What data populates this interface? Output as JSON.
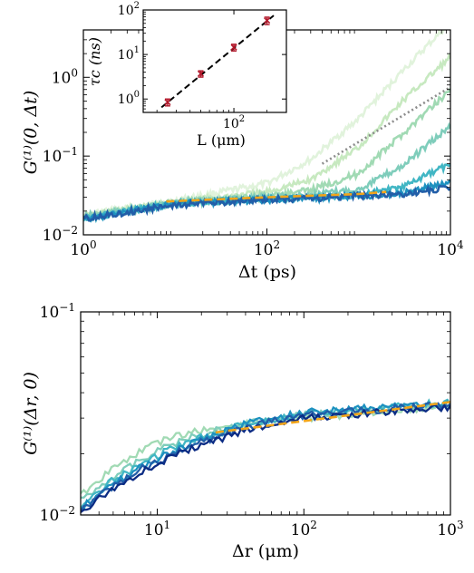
{
  "chart_data": [
    {
      "type": "line",
      "ylabel": "G⁽¹⁾(0, Δt)",
      "xlabel": "Δt (ps)",
      "xscale": "log",
      "yscale": "log",
      "xlim": [
        1,
        10000
      ],
      "ylim": [
        0.01,
        4
      ],
      "xticks": [
        {
          "v": 1,
          "b": "10",
          "e": "0"
        },
        {
          "v": 100,
          "b": "10",
          "e": "2"
        },
        {
          "v": 10000,
          "b": "10",
          "e": "4"
        }
      ],
      "yticks": [
        {
          "v": 0.01,
          "b": "10",
          "e": "−2"
        },
        {
          "v": 0.1,
          "b": "10",
          "e": "−1"
        },
        {
          "v": 1,
          "b": "10",
          "e": "0"
        }
      ],
      "colors": [
        "#e1f3dc",
        "#c7e9c0",
        "#a1dab4",
        "#7fcdbb",
        "#41b6c4",
        "#1d91c0",
        "#225ea8"
      ],
      "series": [
        {
          "color": "#e1f3dc",
          "x": [
            1,
            10,
            100,
            300,
            1000,
            3000,
            10000
          ],
          "y": [
            0.018,
            0.027,
            0.045,
            0.09,
            0.3,
            1.2,
            5.0
          ]
        },
        {
          "color": "#c7e9c0",
          "x": [
            1,
            10,
            100,
            300,
            1000,
            3000,
            10000
          ],
          "y": [
            0.017,
            0.026,
            0.035,
            0.05,
            0.13,
            0.5,
            1.8
          ]
        },
        {
          "color": "#a1dab4",
          "x": [
            1,
            10,
            100,
            300,
            1000,
            3000,
            10000
          ],
          "y": [
            0.017,
            0.026,
            0.031,
            0.037,
            0.06,
            0.19,
            0.7
          ]
        },
        {
          "color": "#7fcdbb",
          "x": [
            1,
            10,
            100,
            300,
            1000,
            3000,
            10000
          ],
          "y": [
            0.017,
            0.025,
            0.03,
            0.032,
            0.038,
            0.075,
            0.24
          ]
        },
        {
          "color": "#41b6c4",
          "x": [
            1,
            10,
            100,
            300,
            1000,
            3000,
            10000
          ],
          "y": [
            0.016,
            0.025,
            0.029,
            0.03,
            0.032,
            0.04,
            0.08
          ]
        },
        {
          "color": "#1d91c0",
          "x": [
            1,
            10,
            100,
            300,
            1000,
            3000,
            10000
          ],
          "y": [
            0.016,
            0.025,
            0.028,
            0.029,
            0.031,
            0.034,
            0.046
          ]
        },
        {
          "color": "#225ea8",
          "x": [
            1,
            10,
            100,
            300,
            1000,
            3000,
            10000
          ],
          "y": [
            0.016,
            0.024,
            0.028,
            0.029,
            0.031,
            0.033,
            0.04
          ]
        }
      ],
      "fit": {
        "color": "#f2a51a",
        "x": [
          8,
          100,
          1000,
          2000
        ],
        "y": [
          0.0265,
          0.03,
          0.033,
          0.035
        ]
      },
      "guide": {
        "color": "#8c8c8c",
        "x": [
          400,
          10000
        ],
        "y": [
          0.08,
          0.75
        ]
      },
      "inset": {
        "ylabel": "τc (ns)",
        "xlabel": "L (μm)",
        "xscale": "log",
        "yscale": "log",
        "xlim": [
          15,
          300
        ],
        "ylim": [
          0.5,
          100
        ],
        "xticks": [
          {
            "v": 100,
            "b": "10",
            "e": "2"
          }
        ],
        "yticks": [
          {
            "v": 1,
            "b": "10",
            "e": "0"
          },
          {
            "v": 10,
            "b": "10",
            "e": "1"
          },
          {
            "v": 100,
            "b": "10",
            "e": "2"
          }
        ],
        "points": {
          "color": "#b2182b",
          "x": [
            25,
            50,
            100,
            200
          ],
          "y": [
            0.85,
            3.7,
            14.5,
            58
          ],
          "err": [
            0.15,
            0.6,
            2.5,
            11
          ]
        },
        "fit": {
          "color": "#000000",
          "x": [
            22,
            230
          ],
          "y": [
            0.65,
            75
          ]
        }
      }
    },
    {
      "type": "line",
      "ylabel": "G⁽¹⁾(Δr, 0)",
      "xlabel": "Δr (μm)",
      "xscale": "log",
      "yscale": "log",
      "xlim": [
        3,
        1000
      ],
      "ylim": [
        0.01,
        0.1
      ],
      "xticks": [
        {
          "v": 10,
          "b": "10",
          "e": "1"
        },
        {
          "v": 100,
          "b": "10",
          "e": "2"
        },
        {
          "v": 1000,
          "b": "10",
          "e": "3"
        }
      ],
      "yticks": [
        {
          "v": 0.01,
          "b": "10",
          "e": "−2"
        },
        {
          "v": 0.1,
          "b": "10",
          "e": "−1"
        }
      ],
      "series": [
        {
          "color": "#a1dab4",
          "x": [
            3,
            5,
            8,
            12,
            20,
            40,
            100,
            1000
          ],
          "y": [
            0.0125,
            0.017,
            0.021,
            0.024,
            0.026,
            0.028,
            0.03,
            0.034
          ]
        },
        {
          "color": "#7fcdbb",
          "x": [
            3,
            5,
            8,
            12,
            20,
            40,
            100,
            1000
          ],
          "y": [
            0.0118,
            0.0155,
            0.019,
            0.022,
            0.025,
            0.028,
            0.031,
            0.035
          ]
        },
        {
          "color": "#41b6c4",
          "x": [
            3,
            5,
            8,
            12,
            20,
            40,
            100,
            1000
          ],
          "y": [
            0.0112,
            0.0148,
            0.018,
            0.021,
            0.024,
            0.028,
            0.031,
            0.036
          ]
        },
        {
          "color": "#1d91c0",
          "x": [
            3,
            5,
            8,
            12,
            20,
            40,
            100,
            1000
          ],
          "y": [
            0.0108,
            0.0142,
            0.0175,
            0.02,
            0.0235,
            0.028,
            0.032,
            0.036
          ]
        },
        {
          "color": "#225ea8",
          "x": [
            3,
            5,
            8,
            12,
            20,
            40,
            100,
            1000
          ],
          "y": [
            0.0106,
            0.0138,
            0.017,
            0.0195,
            0.023,
            0.027,
            0.031,
            0.035
          ]
        },
        {
          "color": "#0c2c84",
          "x": [
            3,
            5,
            8,
            12,
            20,
            40,
            100,
            1000
          ],
          "y": [
            0.0104,
            0.0135,
            0.0165,
            0.019,
            0.022,
            0.026,
            0.03,
            0.034
          ]
        }
      ],
      "fit": {
        "color": "#f2a51a",
        "x": [
          25,
          100,
          1000
        ],
        "y": [
          0.0255,
          0.029,
          0.036
        ]
      }
    }
  ]
}
